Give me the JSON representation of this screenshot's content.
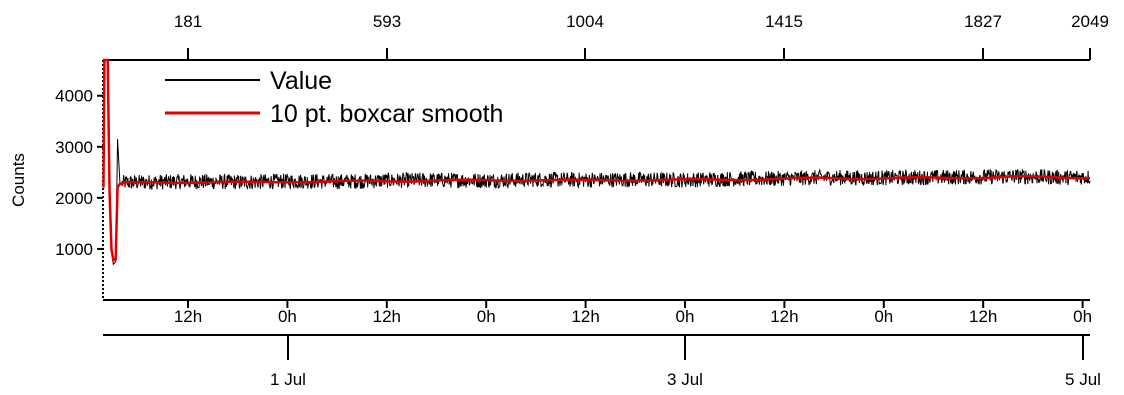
{
  "chart_data": {
    "type": "line",
    "title": "",
    "ylabel": "Counts",
    "ylim": [
      0,
      4700
    ],
    "yticks": [
      "1000",
      "2000",
      "3000",
      "4000"
    ],
    "x_top_ticks": [
      "181",
      "593",
      "1004",
      "1415",
      "1827",
      "2049"
    ],
    "x_hour_ticks": [
      "12h",
      "0h",
      "12h",
      "0h",
      "12h",
      "0h",
      "12h",
      "0h",
      "12h",
      "0h"
    ],
    "x_day_ticks": [
      "1 Jul",
      "3 Jul",
      "5 Jul"
    ],
    "legend": [
      "Value",
      "10 pt. boxcar smooth"
    ],
    "legend_placement": "top-left",
    "grid": false,
    "colors": {
      "value": "#000000",
      "smooth": "#e00000"
    },
    "series": [
      {
        "name": "Value",
        "x_sample_index": [
          1,
          3,
          6,
          10,
          14,
          18,
          22,
          27,
          31,
          36,
          40,
          45,
          60,
          100,
          181,
          300,
          400,
          500,
          593,
          700,
          800,
          900,
          1004,
          1100,
          1200,
          1300,
          1415,
          1500,
          1600,
          1700,
          1827,
          1900,
          2000,
          2049
        ],
        "values": [
          2350,
          4700,
          4700,
          4700,
          2100,
          1000,
          700,
          750,
          3150,
          2300,
          2280,
          2300,
          2300,
          2310,
          2320,
          2310,
          2330,
          2320,
          2340,
          2350,
          2340,
          2360,
          2350,
          2360,
          2350,
          2370,
          2380,
          2400,
          2390,
          2400,
          2410,
          2420,
          2400,
          2410
        ],
        "noise_band": 150
      },
      {
        "name": "10 pt. boxcar smooth",
        "x_sample_index": [
          1,
          3,
          6,
          10,
          14,
          18,
          22,
          27,
          31,
          36,
          40,
          45,
          60,
          100,
          181,
          300,
          400,
          500,
          593,
          700,
          800,
          900,
          1004,
          1100,
          1200,
          1300,
          1415,
          1500,
          1600,
          1700,
          1827,
          1900,
          2000,
          2049
        ],
        "values": [
          2200,
          4700,
          4700,
          4700,
          2100,
          1000,
          780,
          800,
          2200,
          2280,
          2270,
          2290,
          2290,
          2300,
          2310,
          2300,
          2320,
          2320,
          2330,
          2340,
          2340,
          2350,
          2340,
          2350,
          2350,
          2360,
          2370,
          2390,
          2380,
          2390,
          2400,
          2410,
          2400,
          2400
        ]
      }
    ]
  }
}
